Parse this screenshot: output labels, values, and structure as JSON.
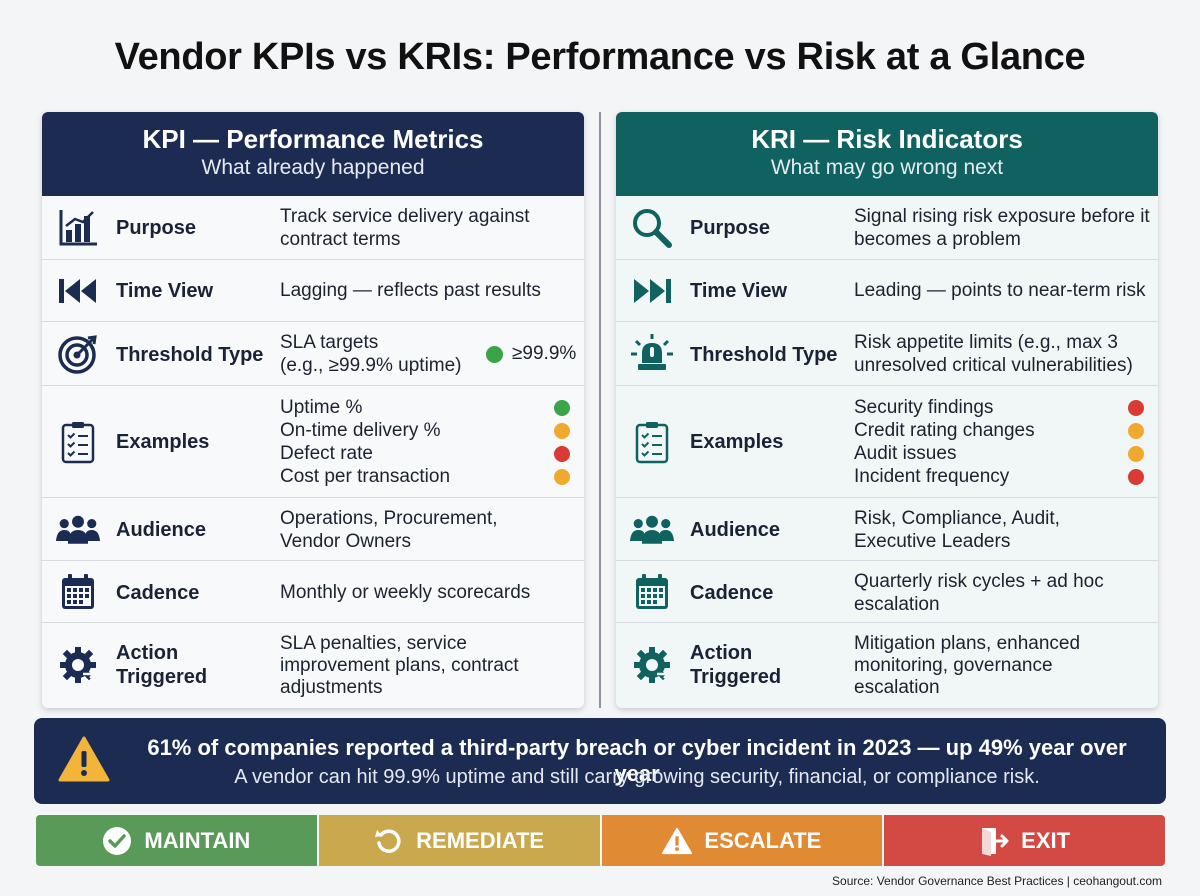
{
  "title": "Vendor KPIs vs KRIs: Performance vs Risk at a Glance",
  "kpi": {
    "heading": "KPI — Performance Metrics",
    "subheading": "What already happened",
    "purpose_label": "Purpose",
    "purpose_value": "Track service delivery against contract terms",
    "timeview_label": "Time View",
    "timeview_value": "Lagging — reflects past results",
    "threshold_label": "Threshold Type",
    "threshold_value_1": "SLA targets",
    "threshold_value_2": "(e.g., ≥99.9% uptime)",
    "threshold_badge": "≥99.9%",
    "examples_label": "Examples",
    "examples": [
      {
        "text": "Uptime %",
        "color": "#3aa547"
      },
      {
        "text": "On-time delivery %",
        "color": "#f0a92e"
      },
      {
        "text": "Defect rate",
        "color": "#d93a34"
      },
      {
        "text": "Cost per transaction",
        "color": "#f0a92e"
      }
    ],
    "audience_label": "Audience",
    "audience_value_1": "Operations, Procurement,",
    "audience_value_2": "Vendor Owners",
    "cadence_label": "Cadence",
    "cadence_value": "Monthly or weekly scorecards",
    "action_label_1": "Action",
    "action_label_2": "Triggered",
    "action_value_1": "SLA penalties, service",
    "action_value_2": "improvement plans, contract",
    "action_value_3": "adjustments"
  },
  "kri": {
    "heading": "KRI — Risk Indicators",
    "subheading": "What may go wrong next",
    "purpose_label": "Purpose",
    "purpose_value": "Signal rising risk exposure before it becomes a problem",
    "timeview_label": "Time View",
    "timeview_value": "Leading — points to near-term risk",
    "threshold_label": "Threshold Type",
    "threshold_value_1": "Risk appetite limits (e.g., max 3",
    "threshold_value_2": "unresolved critical vulnerabilities)",
    "examples_label": "Examples",
    "examples": [
      {
        "text": "Security findings",
        "color": "#d93a34"
      },
      {
        "text": "Credit rating changes",
        "color": "#f0a92e"
      },
      {
        "text": "Audit issues",
        "color": "#f0a92e"
      },
      {
        "text": "Incident frequency",
        "color": "#d93a34"
      }
    ],
    "audience_label": "Audience",
    "audience_value_1": "Risk, Compliance, Audit,",
    "audience_value_2": "Executive Leaders",
    "cadence_label": "Cadence",
    "cadence_value_1": "Quarterly risk cycles + ad hoc",
    "cadence_value_2": "escalation",
    "action_label_1": "Action",
    "action_label_2": "Triggered",
    "action_value_1": "Mitigation plans, enhanced",
    "action_value_2": "monitoring, governance",
    "action_value_3": "escalation"
  },
  "banner": {
    "headline": "61% of companies reported a third-party breach or cyber incident in 2023 — up 49% year over year",
    "subline": "A vendor can hit 99.9% uptime and still carry growing security, financial, or compliance risk."
  },
  "actions": [
    {
      "label": "MAINTAIN",
      "color": "#5a9a58",
      "icon": "check-circle-icon"
    },
    {
      "label": "REMEDIATE",
      "color": "#c9a84e",
      "icon": "undo-arrow-icon"
    },
    {
      "label": "ESCALATE",
      "color": "#e08a34",
      "icon": "warning-triangle-icon"
    },
    {
      "label": "EXIT",
      "color": "#d24a43",
      "icon": "exit-door-icon"
    }
  ],
  "source": "Source: Vendor Governance Best Practices | ceohangout.com",
  "colors": {
    "kpi_header": "#1c2b52",
    "kri_header": "#0f625f",
    "banner": "#1c2b52"
  }
}
